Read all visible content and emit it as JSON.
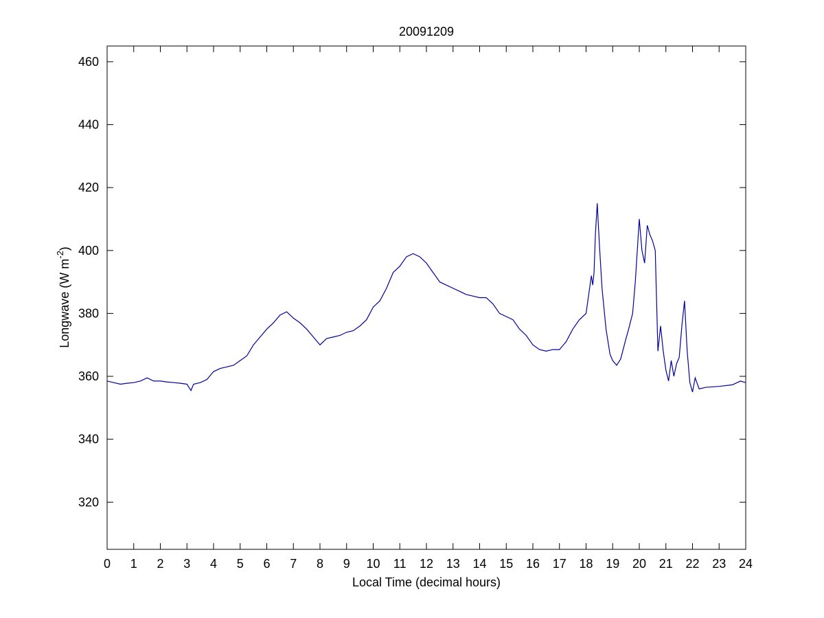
{
  "chart_data": {
    "type": "line",
    "title": "20091209",
    "x_label": "Local Time (decimal hours)",
    "y_label_parts": [
      "Longwave (W m",
      "-2",
      ")"
    ],
    "xlim": [
      0,
      24
    ],
    "xticks": [
      0,
      1,
      2,
      3,
      4,
      5,
      6,
      7,
      8,
      9,
      10,
      11,
      12,
      13,
      14,
      15,
      16,
      17,
      18,
      19,
      20,
      21,
      22,
      23,
      24
    ],
    "ylim": [
      305,
      465
    ],
    "yticks": [
      320,
      340,
      360,
      380,
      400,
      420,
      440,
      460
    ],
    "grid": false,
    "series": [
      {
        "color": "#0000a0",
        "x": [
          0,
          0.25,
          0.5,
          0.75,
          1,
          1.25,
          1.5,
          1.75,
          2,
          2.25,
          2.5,
          2.75,
          3,
          3.15,
          3.25,
          3.5,
          3.75,
          4,
          4.25,
          4.5,
          4.75,
          5,
          5.25,
          5.5,
          5.75,
          6,
          6.25,
          6.5,
          6.75,
          7,
          7.25,
          7.5,
          7.75,
          8,
          8.25,
          8.5,
          8.75,
          9,
          9.25,
          9.5,
          9.75,
          10,
          10.25,
          10.5,
          10.75,
          11,
          11.25,
          11.5,
          11.75,
          12,
          12.25,
          12.5,
          12.75,
          13,
          13.25,
          13.5,
          13.75,
          14,
          14.25,
          14.5,
          14.75,
          15,
          15.25,
          15.5,
          15.75,
          16,
          16.25,
          16.5,
          16.75,
          17,
          17.25,
          17.5,
          17.75,
          18,
          18.1,
          18.2,
          18.25,
          18.3,
          18.35,
          18.42,
          18.5,
          18.6,
          18.75,
          18.9,
          19,
          19.15,
          19.3,
          19.5,
          19.6,
          19.75,
          19.85,
          20,
          20.1,
          20.2,
          20.3,
          20.4,
          20.5,
          20.6,
          20.7,
          20.8,
          20.9,
          21,
          21.1,
          21.2,
          21.3,
          21.4,
          21.5,
          21.6,
          21.7,
          21.75,
          21.8,
          21.9,
          22,
          22.1,
          22.25,
          22.5,
          23,
          23.5,
          23.8,
          24
        ],
        "values": [
          358.5,
          358,
          357.5,
          357.8,
          358,
          358.5,
          359.5,
          358.5,
          358.5,
          358.2,
          358,
          357.8,
          357.5,
          355.5,
          357.5,
          358,
          359,
          361.5,
          362.5,
          363,
          363.5,
          365,
          366.5,
          370,
          372.5,
          375,
          377,
          379.5,
          380.5,
          378.5,
          377,
          375,
          372.5,
          370,
          372,
          372.5,
          373,
          374,
          374.5,
          376,
          378,
          382,
          384,
          388,
          393,
          395,
          398,
          399,
          398,
          396,
          393,
          390,
          389,
          388,
          387,
          386,
          385.5,
          385,
          385,
          383,
          380,
          379,
          378,
          375,
          373,
          370,
          368.5,
          368,
          368.5,
          368.5,
          371,
          375,
          378,
          380,
          386,
          392,
          389,
          393,
          405,
          415,
          402,
          388,
          375,
          367,
          365,
          363.5,
          365.5,
          372,
          375,
          380,
          390,
          410,
          400,
          396,
          408,
          405,
          403,
          400,
          368,
          376,
          368,
          362,
          358.5,
          365,
          360,
          364,
          366,
          376,
          384,
          376,
          368,
          358,
          355,
          359.5,
          356,
          356.5,
          356.8,
          357.3,
          358.5,
          358
        ]
      }
    ]
  }
}
